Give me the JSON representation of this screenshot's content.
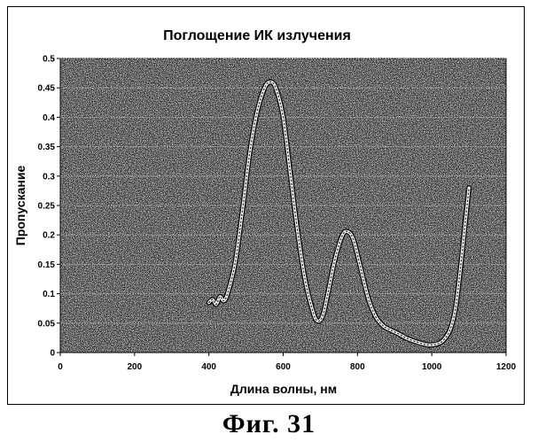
{
  "figure_caption": "Фиг. 31",
  "chart_data": {
    "type": "line",
    "title": "Поглощение ИК излучения",
    "xlabel": "Длина волны, нм",
    "ylabel": "Пропускание",
    "xlim": [
      0,
      1200
    ],
    "ylim": [
      0,
      0.5
    ],
    "x_ticks": [
      0,
      200,
      400,
      600,
      800,
      1000,
      1200
    ],
    "y_ticks": [
      0,
      0.05,
      0.1,
      0.15,
      0.2,
      0.25,
      0.3,
      0.35,
      0.4,
      0.45,
      0.5
    ],
    "grid": true,
    "legend": "none",
    "plot_background": "#1e1e1e",
    "line_color": "#ffffff",
    "series": [
      {
        "x": [
          400,
          410,
          420,
          430,
          440,
          450,
          470,
          490,
          510,
          530,
          550,
          565,
          580,
          600,
          620,
          640,
          660,
          680,
          690,
          700,
          710,
          720,
          740,
          760,
          775,
          790,
          810,
          830,
          850,
          870,
          890,
          910,
          930,
          950,
          970,
          990,
          1010,
          1030,
          1050,
          1065,
          1080,
          1090,
          1100
        ],
        "y": [
          0.085,
          0.09,
          0.082,
          0.095,
          0.088,
          0.1,
          0.15,
          0.24,
          0.34,
          0.41,
          0.45,
          0.46,
          0.45,
          0.4,
          0.3,
          0.2,
          0.12,
          0.07,
          0.055,
          0.055,
          0.07,
          0.1,
          0.16,
          0.2,
          0.205,
          0.19,
          0.14,
          0.09,
          0.06,
          0.045,
          0.038,
          0.032,
          0.025,
          0.02,
          0.016,
          0.013,
          0.014,
          0.02,
          0.04,
          0.08,
          0.16,
          0.22,
          0.28
        ]
      }
    ]
  }
}
